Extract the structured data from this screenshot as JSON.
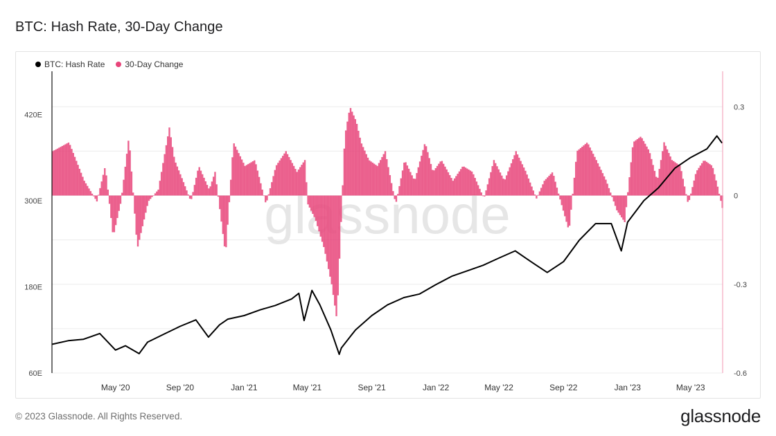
{
  "title": "BTC: Hash Rate, 30-Day Change",
  "footer": {
    "copyright": "© 2023 Glassnode. All Rights Reserved.",
    "logo": "glassnode"
  },
  "watermark": "glassnode",
  "colors": {
    "hash_rate": "#000000",
    "change": "#e8457a"
  },
  "chart_data": {
    "type": "line",
    "title": "BTC: Hash Rate, 30-Day Change",
    "legend": {
      "placement": "top-left",
      "items": [
        {
          "name": "BTC: Hash Rate",
          "color": "#000000"
        },
        {
          "name": "30-Day Change",
          "color": "#e8457a"
        }
      ]
    },
    "x_range": [
      "2020-01-01",
      "2023-07-01"
    ],
    "x_ticks": [
      "May '20",
      "Sep '20",
      "Jan '21",
      "May '21",
      "Sep '21",
      "Jan '22",
      "May '22",
      "Sep '22",
      "Jan '23",
      "May '23"
    ],
    "y_left": {
      "ticks": [
        "60E",
        "180E",
        "300E",
        "420E"
      ],
      "range": [
        60,
        480
      ]
    },
    "y_right": {
      "ticks": [
        "0.3",
        "0",
        "-0.3",
        "-0.6"
      ],
      "range": [
        -0.6,
        0.42
      ]
    },
    "grid": "horizontal",
    "series": [
      {
        "name": "BTC: Hash Rate",
        "axis": "left",
        "type": "line",
        "x": [
          "2020-01-01",
          "2020-02-01",
          "2020-03-01",
          "2020-04-01",
          "2020-05-01",
          "2020-05-20",
          "2020-06-15",
          "2020-07-01",
          "2020-08-01",
          "2020-09-01",
          "2020-10-01",
          "2020-10-25",
          "2020-11-15",
          "2020-12-01",
          "2021-01-01",
          "2021-02-01",
          "2021-03-01",
          "2021-04-01",
          "2021-04-15",
          "2021-04-25",
          "2021-05-10",
          "2021-05-25",
          "2021-06-15",
          "2021-07-01",
          "2021-07-05",
          "2021-08-01",
          "2021-09-01",
          "2021-10-01",
          "2021-11-01",
          "2021-12-01",
          "2022-01-01",
          "2022-02-01",
          "2022-03-01",
          "2022-04-01",
          "2022-05-01",
          "2022-06-01",
          "2022-07-01",
          "2022-08-01",
          "2022-09-01",
          "2022-10-01",
          "2022-11-01",
          "2022-12-01",
          "2022-12-20",
          "2023-01-01",
          "2023-02-01",
          "2023-03-01",
          "2023-04-01",
          "2023-05-01",
          "2023-06-01",
          "2023-06-20",
          "2023-06-30"
        ],
        "values": [
          100,
          105,
          107,
          115,
          92,
          98,
          87,
          103,
          114,
          125,
          134,
          110,
          127,
          135,
          140,
          148,
          154,
          163,
          171,
          133,
          175,
          155,
          120,
          86,
          95,
          120,
          140,
          155,
          165,
          170,
          183,
          195,
          202,
          210,
          220,
          230,
          215,
          200,
          215,
          245,
          268,
          268,
          230,
          270,
          300,
          318,
          345,
          360,
          372,
          390,
          380
        ]
      },
      {
        "name": "30-Day Change",
        "axis": "right",
        "type": "bar",
        "x": [
          "2020-01-01",
          "2020-02-01",
          "2020-03-01",
          "2020-03-25",
          "2020-04-10",
          "2020-04-25",
          "2020-05-10",
          "2020-05-25",
          "2020-06-10",
          "2020-07-01",
          "2020-07-20",
          "2020-08-10",
          "2020-08-20",
          "2020-09-05",
          "2020-09-20",
          "2020-10-05",
          "2020-10-25",
          "2020-11-05",
          "2020-11-25",
          "2020-12-10",
          "2021-01-01",
          "2021-01-20",
          "2021-02-10",
          "2021-03-01",
          "2021-03-20",
          "2021-04-10",
          "2021-04-25",
          "2021-05-01",
          "2021-05-15",
          "2021-06-01",
          "2021-06-15",
          "2021-06-25",
          "2021-07-10",
          "2021-07-20",
          "2021-08-01",
          "2021-08-10",
          "2021-08-25",
          "2021-09-10",
          "2021-09-25",
          "2021-10-15",
          "2021-11-01",
          "2021-11-20",
          "2021-12-10",
          "2021-12-25",
          "2022-01-10",
          "2022-02-01",
          "2022-02-20",
          "2022-03-10",
          "2022-04-01",
          "2022-04-20",
          "2022-05-10",
          "2022-06-01",
          "2022-06-20",
          "2022-07-10",
          "2022-07-25",
          "2022-08-10",
          "2022-08-25",
          "2022-09-10",
          "2022-09-25",
          "2022-10-15",
          "2022-11-01",
          "2022-11-20",
          "2022-12-10",
          "2022-12-25",
          "2023-01-10",
          "2023-01-25",
          "2023-02-10",
          "2023-02-25",
          "2023-03-10",
          "2023-03-25",
          "2023-04-10",
          "2023-04-25",
          "2023-05-10",
          "2023-05-25",
          "2023-06-10",
          "2023-06-20",
          "2023-06-30"
        ],
        "values": [
          0.15,
          0.18,
          0.05,
          -0.02,
          0.1,
          -0.14,
          -0.02,
          0.2,
          -0.18,
          -0.02,
          0.02,
          0.23,
          0.12,
          0.05,
          -0.02,
          0.1,
          0.02,
          0.08,
          -0.2,
          0.18,
          0.1,
          0.12,
          -0.03,
          0.1,
          0.15,
          0.08,
          0.12,
          -0.03,
          -0.08,
          -0.18,
          -0.3,
          -0.42,
          0.2,
          0.3,
          0.25,
          0.18,
          0.12,
          0.1,
          0.15,
          -0.03,
          0.12,
          0.05,
          0.18,
          0.08,
          0.12,
          0.05,
          0.1,
          0.08,
          -0.01,
          0.12,
          0.05,
          0.15,
          0.08,
          -0.01,
          0.05,
          0.08,
          -0.02,
          -0.12,
          0.15,
          0.18,
          0.12,
          0.05,
          -0.05,
          -0.09,
          0.18,
          0.2,
          0.15,
          0.05,
          0.18,
          0.12,
          0.1,
          -0.03,
          0.08,
          0.12,
          0.1,
          0.03,
          -0.05
        ]
      }
    ]
  }
}
